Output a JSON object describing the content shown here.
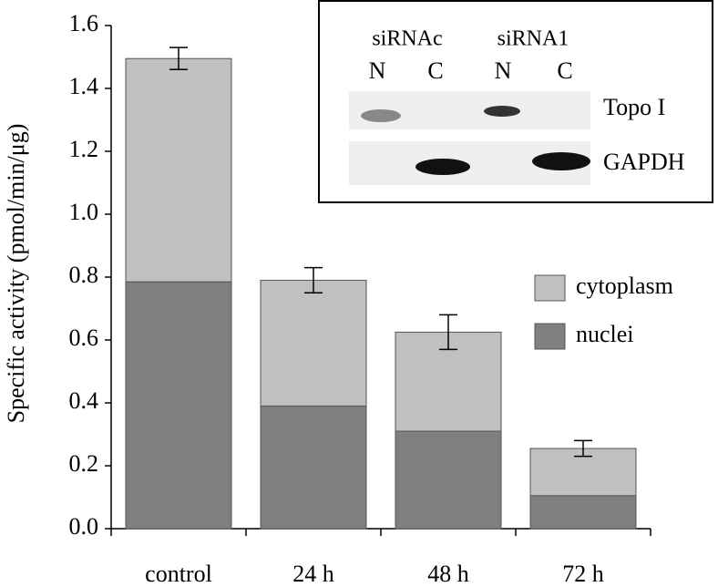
{
  "chart_data": {
    "type": "stacked-bar",
    "ylabel": "Specific activity (pmol/min/μg)",
    "categories": [
      "control",
      "24 h",
      "48 h",
      "72 h"
    ],
    "series": [
      {
        "name": "nuclei",
        "color": "#7f7f7f",
        "values": [
          0.785,
          0.39,
          0.31,
          0.105
        ]
      },
      {
        "name": "cytoplasm",
        "color": "#c0c0c0",
        "values": [
          0.71,
          0.4,
          0.315,
          0.15
        ],
        "errors": [
          0.035,
          0.04,
          0.055,
          0.025
        ]
      }
    ],
    "ylim": [
      0,
      1.6
    ],
    "yticks": [
      {
        "value": 0,
        "label": "0.0"
      },
      0.2,
      0.4,
      0.6,
      0.8,
      {
        "value": 1,
        "label": "1.0"
      },
      1.2,
      1.4,
      1.6
    ],
    "inset": {
      "groups": [
        "siRNAc",
        "siRNA1"
      ],
      "lanes": [
        "N",
        "C",
        "N",
        "C"
      ],
      "rows": [
        "Topo I",
        "GAPDH"
      ]
    }
  }
}
